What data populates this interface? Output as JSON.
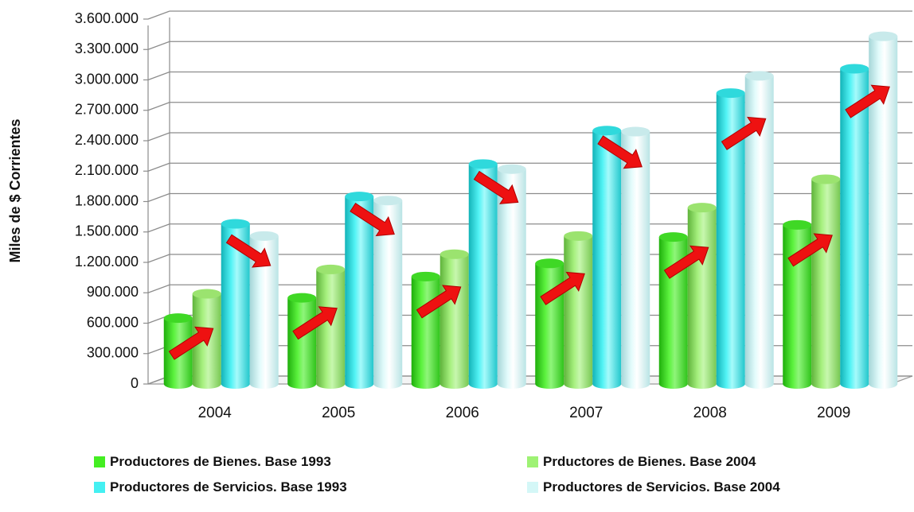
{
  "chart_data": {
    "type": "bar",
    "title": "",
    "xlabel": "",
    "ylabel": "Miles de $ Corrientes",
    "ylim": [
      0,
      3600000
    ],
    "yticks": [
      "0",
      "300.000",
      "600.000",
      "900.000",
      "1.200.000",
      "1.500.000",
      "1.800.000",
      "2.100.000",
      "2.400.000",
      "2.700.000",
      "3.000.000",
      "3.300.000",
      "3.600.000"
    ],
    "ytick_values": [
      0,
      300000,
      600000,
      900000,
      1200000,
      1500000,
      1800000,
      2100000,
      2400000,
      2700000,
      3000000,
      3300000,
      3600000
    ],
    "categories": [
      "2004",
      "2005",
      "2006",
      "2007",
      "2008",
      "2009"
    ],
    "grid": true,
    "style": "3d-cylinder",
    "legend_position": "bottom",
    "series": [
      {
        "name": "Productores de Bienes. Base 1993",
        "color": "#44ee22",
        "values": [
          650000,
          850000,
          1060000,
          1190000,
          1450000,
          1570000
        ]
      },
      {
        "name": "Prductores de Bienes. Base 2004",
        "color": "#9ef274",
        "values": [
          890000,
          1130000,
          1280000,
          1460000,
          1740000,
          2020000
        ]
      },
      {
        "name": "Productores de Servicios. Base 1993",
        "color": "#44f0f2",
        "values": [
          1580000,
          1850000,
          2170000,
          2500000,
          2870000,
          3110000
        ]
      },
      {
        "name": "Productores de Servicios. Base 2004",
        "color": "#d4f7f7",
        "values": [
          1460000,
          1810000,
          2120000,
          2490000,
          3040000,
          3430000
        ]
      }
    ],
    "arrow_color": "#ee1111",
    "arrows": [
      {
        "category": "2004",
        "direction": "up",
        "between": [
          0,
          1
        ]
      },
      {
        "category": "2004",
        "direction": "down",
        "between": [
          2,
          3
        ]
      },
      {
        "category": "2005",
        "direction": "up",
        "between": [
          0,
          1
        ]
      },
      {
        "category": "2005",
        "direction": "down",
        "between": [
          2,
          3
        ]
      },
      {
        "category": "2006",
        "direction": "up",
        "between": [
          0,
          1
        ]
      },
      {
        "category": "2006",
        "direction": "down",
        "between": [
          2,
          3
        ]
      },
      {
        "category": "2007",
        "direction": "up",
        "between": [
          0,
          1
        ]
      },
      {
        "category": "2007",
        "direction": "down",
        "between": [
          2,
          3
        ]
      },
      {
        "category": "2008",
        "direction": "up",
        "between": [
          0,
          1
        ]
      },
      {
        "category": "2008",
        "direction": "up",
        "between": [
          2,
          3
        ]
      },
      {
        "category": "2009",
        "direction": "up",
        "between": [
          0,
          1
        ]
      },
      {
        "category": "2009",
        "direction": "up",
        "between": [
          2,
          3
        ]
      }
    ]
  }
}
